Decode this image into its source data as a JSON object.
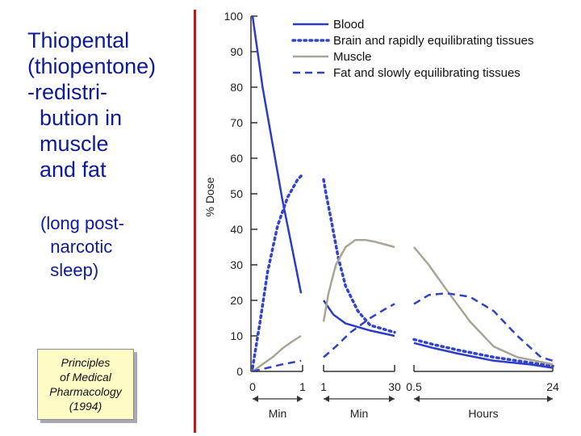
{
  "slide": {
    "title": "Thiopental\n(thiopentone)\n-redistri-\n  bution in\n  muscle\n  and fat",
    "subtitle": "(long post-\n  narcotic\n  sleep)",
    "reference": "Principles\nof Medical\nPharmacology\n(1994)"
  },
  "colors": {
    "title": "#0d1a9c",
    "blood": "#2a3cc8",
    "brain": "#3344cc",
    "muscle": "#a9a596",
    "fat": "#2f42c8",
    "chart_border": "#b41e1e",
    "ref_box": "#fffbc4"
  },
  "chart_data": {
    "type": "line",
    "ylabel": "% Dose",
    "ylim": [
      0,
      100
    ],
    "yticks": [
      "0",
      "10",
      "20",
      "30",
      "40",
      "50",
      "60",
      "70",
      "80",
      "90",
      "100"
    ],
    "segments": [
      {
        "unit": "Min",
        "tick_labels": [
          "0",
          "1"
        ],
        "x_range": [
          0,
          1
        ]
      },
      {
        "unit": "Min",
        "tick_labels": [
          "1",
          "30"
        ],
        "x_range": [
          1,
          30
        ]
      },
      {
        "unit": "Hours",
        "tick_labels": [
          "0.5",
          "24"
        ],
        "x_range": [
          0.5,
          24
        ]
      }
    ],
    "legend": {
      "position": "top-right"
    },
    "series": [
      {
        "name": "Blood",
        "style": "solid",
        "color": "#2a3cc8",
        "points": [
          [
            [
              0,
              100
            ],
            [
              0.2,
              80
            ],
            [
              0.4,
              64
            ],
            [
              0.6,
              48
            ],
            [
              0.8,
              34
            ],
            [
              0.97,
              22
            ]
          ],
          [
            [
              1,
              20
            ],
            [
              5,
              16
            ],
            [
              10,
              13.5
            ],
            [
              20,
              11.5
            ],
            [
              30,
              10
            ]
          ],
          [
            [
              0.5,
              8
            ],
            [
              4,
              6.5
            ],
            [
              8,
              5
            ],
            [
              14,
              3
            ],
            [
              20,
              2
            ],
            [
              24,
              1
            ]
          ]
        ]
      },
      {
        "name": "Brain and rapidly equilibrating tissues",
        "style": "dotted",
        "color": "#3344cc",
        "points": [
          [
            [
              0,
              1
            ],
            [
              0.15,
              14
            ],
            [
              0.3,
              28
            ],
            [
              0.5,
              41
            ],
            [
              0.7,
              49
            ],
            [
              0.9,
              54
            ],
            [
              0.97,
              55
            ]
          ],
          [
            [
              1,
              54
            ],
            [
              2,
              50
            ],
            [
              4,
              43
            ],
            [
              7,
              32
            ],
            [
              10,
              24
            ],
            [
              15,
              17
            ],
            [
              20,
              13
            ],
            [
              30,
              11
            ]
          ],
          [
            [
              0.5,
              9
            ],
            [
              4,
              7.5
            ],
            [
              8,
              6
            ],
            [
              14,
              4
            ],
            [
              20,
              2.5
            ],
            [
              24,
              1.5
            ]
          ]
        ]
      },
      {
        "name": "Muscle",
        "style": "solid",
        "color": "#a9a596",
        "points": [
          [
            [
              0,
              0
            ],
            [
              0.2,
              2
            ],
            [
              0.4,
              4
            ],
            [
              0.6,
              6.5
            ],
            [
              0.8,
              8.5
            ],
            [
              0.97,
              10
            ]
          ],
          [
            [
              1,
              14
            ],
            [
              3,
              22
            ],
            [
              6,
              30
            ],
            [
              10,
              35
            ],
            [
              14,
              37
            ],
            [
              18,
              37
            ],
            [
              22,
              36.5
            ],
            [
              30,
              35
            ]
          ],
          [
            [
              0.5,
              35
            ],
            [
              3,
              30
            ],
            [
              6,
              23
            ],
            [
              10,
              14
            ],
            [
              14,
              7
            ],
            [
              18,
              4
            ],
            [
              24,
              2
            ]
          ]
        ]
      },
      {
        "name": "Fat and slowly equilibrating tissues",
        "style": "dashed",
        "color": "#2f42c8",
        "points": [
          [
            [
              0,
              0
            ],
            [
              0.3,
              1
            ],
            [
              0.6,
              2
            ],
            [
              0.97,
              3
            ]
          ],
          [
            [
              1,
              4
            ],
            [
              6,
              7
            ],
            [
              12,
              11
            ],
            [
              20,
              15
            ],
            [
              26,
              17.5
            ],
            [
              30,
              19
            ]
          ],
          [
            [
              0.5,
              19
            ],
            [
              3,
              21.5
            ],
            [
              6,
              22
            ],
            [
              10,
              21
            ],
            [
              14,
              17
            ],
            [
              18,
              10
            ],
            [
              22,
              4
            ],
            [
              24,
              3
            ]
          ]
        ]
      }
    ]
  }
}
